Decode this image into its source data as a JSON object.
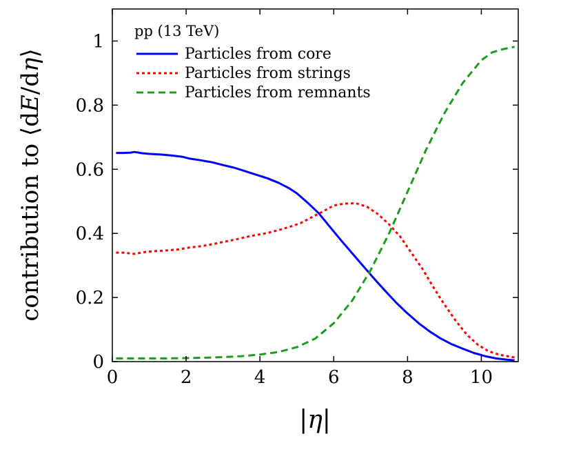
{
  "chart_data": {
    "type": "line",
    "title": "",
    "xlabel": "|η|",
    "ylabel_parts": {
      "prefix": "contribution to ⟨d",
      "var_e": "E",
      "mid": "/d",
      "var_eta": "η",
      "suffix": "⟩"
    },
    "xlim": [
      0,
      11
    ],
    "ylim": [
      0,
      1.1
    ],
    "x_ticks": [
      0,
      2,
      4,
      6,
      8,
      10
    ],
    "x_tick_labels": [
      "0",
      "2",
      "4",
      "6",
      "8",
      "10"
    ],
    "y_ticks": [
      0,
      0.2,
      0.4,
      0.6,
      0.8,
      1
    ],
    "y_tick_labels": [
      "0",
      "0.2",
      "0.4",
      "0.6",
      "0.8",
      "1"
    ],
    "grid": false,
    "legend": {
      "title": "pp (13 TeV)",
      "position": "top-left"
    },
    "series": [
      {
        "name": "Particles from core",
        "color": "#0000ff",
        "style": "solid",
        "x": [
          0.1,
          0.3,
          0.5,
          0.6,
          0.8,
          1.0,
          1.3,
          1.6,
          1.9,
          2.1,
          2.4,
          2.7,
          3.0,
          3.3,
          3.6,
          3.9,
          4.2,
          4.5,
          4.8,
          5.0,
          5.3,
          5.6,
          5.9,
          6.2,
          6.5,
          6.8,
          7.1,
          7.4,
          7.7,
          8.0,
          8.3,
          8.6,
          8.9,
          9.2,
          9.5,
          9.8,
          10.1,
          10.4,
          10.7,
          10.9
        ],
        "y": [
          0.651,
          0.651,
          0.652,
          0.654,
          0.65,
          0.648,
          0.646,
          0.643,
          0.639,
          0.633,
          0.628,
          0.622,
          0.613,
          0.605,
          0.594,
          0.583,
          0.572,
          0.558,
          0.54,
          0.525,
          0.495,
          0.462,
          0.42,
          0.378,
          0.338,
          0.298,
          0.258,
          0.22,
          0.183,
          0.15,
          0.12,
          0.094,
          0.072,
          0.054,
          0.04,
          0.027,
          0.017,
          0.01,
          0.006,
          0.004
        ]
      },
      {
        "name": "Particles from strings",
        "color": "#ff0000",
        "style": "dotted",
        "x": [
          0.1,
          0.3,
          0.6,
          0.9,
          1.2,
          1.5,
          1.8,
          2.1,
          2.4,
          2.7,
          3.0,
          3.3,
          3.6,
          3.9,
          4.2,
          4.5,
          4.8,
          5.1,
          5.4,
          5.7,
          6.0,
          6.3,
          6.6,
          6.9,
          7.2,
          7.5,
          7.8,
          8.1,
          8.4,
          8.7,
          9.0,
          9.3,
          9.6,
          9.9,
          10.2,
          10.5,
          10.8,
          10.9
        ],
        "y": [
          0.34,
          0.34,
          0.336,
          0.342,
          0.345,
          0.347,
          0.35,
          0.356,
          0.36,
          0.366,
          0.373,
          0.38,
          0.388,
          0.395,
          0.401,
          0.41,
          0.42,
          0.432,
          0.45,
          0.468,
          0.487,
          0.493,
          0.494,
          0.483,
          0.46,
          0.428,
          0.39,
          0.34,
          0.29,
          0.232,
          0.178,
          0.128,
          0.085,
          0.053,
          0.032,
          0.021,
          0.015,
          0.013
        ]
      },
      {
        "name": "Particles from remnants",
        "color": "#1a9e1a",
        "style": "dashed",
        "x": [
          0.1,
          0.5,
          1.0,
          1.5,
          2.0,
          2.5,
          3.0,
          3.5,
          4.0,
          4.5,
          5.0,
          5.5,
          6.0,
          6.5,
          7.0,
          7.5,
          8.0,
          8.5,
          9.0,
          9.5,
          10.0,
          10.3,
          10.6,
          10.9
        ],
        "y": [
          0.01,
          0.01,
          0.01,
          0.01,
          0.011,
          0.012,
          0.014,
          0.017,
          0.022,
          0.03,
          0.045,
          0.072,
          0.12,
          0.19,
          0.285,
          0.4,
          0.53,
          0.66,
          0.775,
          0.87,
          0.94,
          0.965,
          0.975,
          0.982
        ]
      }
    ]
  }
}
